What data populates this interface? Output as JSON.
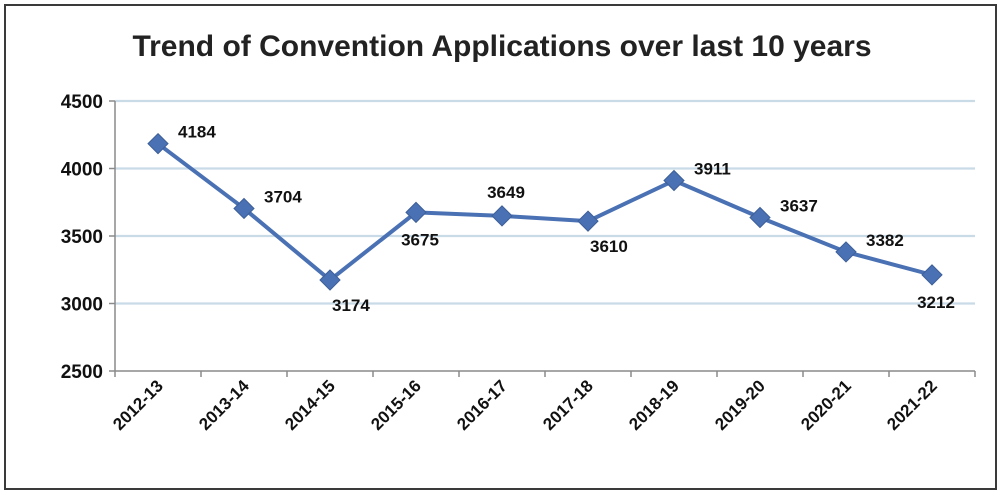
{
  "chart_data": {
    "type": "line",
    "title": "Trend of Convention Applications over last 10 years",
    "xlabel": "",
    "ylabel": "",
    "categories": [
      "2012-13",
      "2013-14",
      "2014-15",
      "2015-16",
      "2016-17",
      "2017-18",
      "2018-19",
      "2019-20",
      "2020-21",
      "2021-22"
    ],
    "series": [
      {
        "values": [
          4184,
          3704,
          3174,
          3675,
          3649,
          3610,
          3911,
          3637,
          3382,
          3212
        ],
        "data_labels": [
          "4184",
          "3704",
          "3174",
          "3675",
          "3649",
          "3610",
          "3911",
          "3637",
          "3382",
          "3212"
        ],
        "color": "#4a71b3"
      }
    ],
    "ylim": [
      2500,
      4500
    ],
    "yticks": [
      2500,
      3000,
      3500,
      4000,
      4500
    ],
    "ytick_labels": [
      "2500",
      "3000",
      "3500",
      "4000",
      "4500"
    ],
    "grid": true,
    "legend": "none",
    "marker": "diamond"
  }
}
